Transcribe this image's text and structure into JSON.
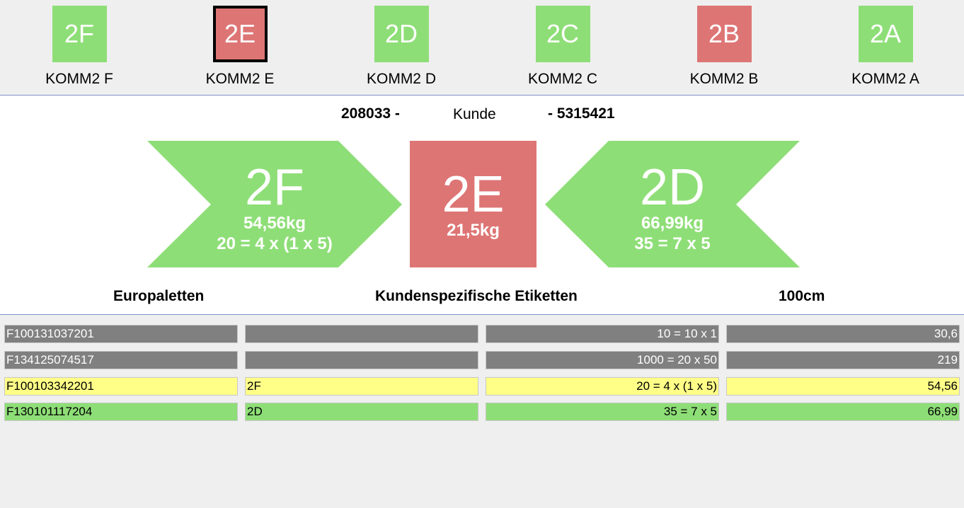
{
  "stations": [
    {
      "code": "2F",
      "label": "KOMM2 F",
      "color": "#8ede77",
      "selected": false
    },
    {
      "code": "2E",
      "label": "KOMM2 E",
      "color": "#de7575",
      "selected": true
    },
    {
      "code": "2D",
      "label": "KOMM2 D",
      "color": "#8ede77",
      "selected": false
    },
    {
      "code": "2C",
      "label": "KOMM2 C",
      "color": "#8ede77",
      "selected": false
    },
    {
      "code": "2B",
      "label": "KOMM2 B",
      "color": "#de7575",
      "selected": false
    },
    {
      "code": "2A",
      "label": "KOMM2 A",
      "color": "#8ede77",
      "selected": false
    }
  ],
  "order": {
    "left": "208033 -",
    "customer": "Kunde",
    "right": "- 5315421"
  },
  "prev": {
    "code": "2F",
    "weight": "54,56kg",
    "formula": "20 = 4 x (1 x 5)",
    "color": "#8ede77"
  },
  "current": {
    "code": "2E",
    "weight": "21,5kg",
    "color": "#de7575"
  },
  "next": {
    "code": "2D",
    "weight": "66,99kg",
    "formula": "35 = 7 x 5",
    "color": "#8ede77"
  },
  "footer": {
    "pallet": "Europaletten",
    "labels": "Kundenspezifische Etiketten",
    "height": "100cm"
  },
  "rows": [
    {
      "id": "F100131037201",
      "station": "",
      "qty": "10 = 10 x 1",
      "weight": "30,6",
      "bg": "#808080",
      "fg": "#ffffff"
    },
    {
      "id": "F134125074517",
      "station": "",
      "qty": "1000 = 20 x 50",
      "weight": "219",
      "bg": "#808080",
      "fg": "#ffffff"
    },
    {
      "id": "F100103342201",
      "station": "2F",
      "qty": "20 = 4 x (1 x 5)",
      "weight": "54,56",
      "bg": "#ffff88",
      "fg": "#000000"
    },
    {
      "id": "F130101117204",
      "station": "2D",
      "qty": "35 = 7 x 5",
      "weight": "66,99",
      "bg": "#8ede77",
      "fg": "#000000"
    }
  ]
}
